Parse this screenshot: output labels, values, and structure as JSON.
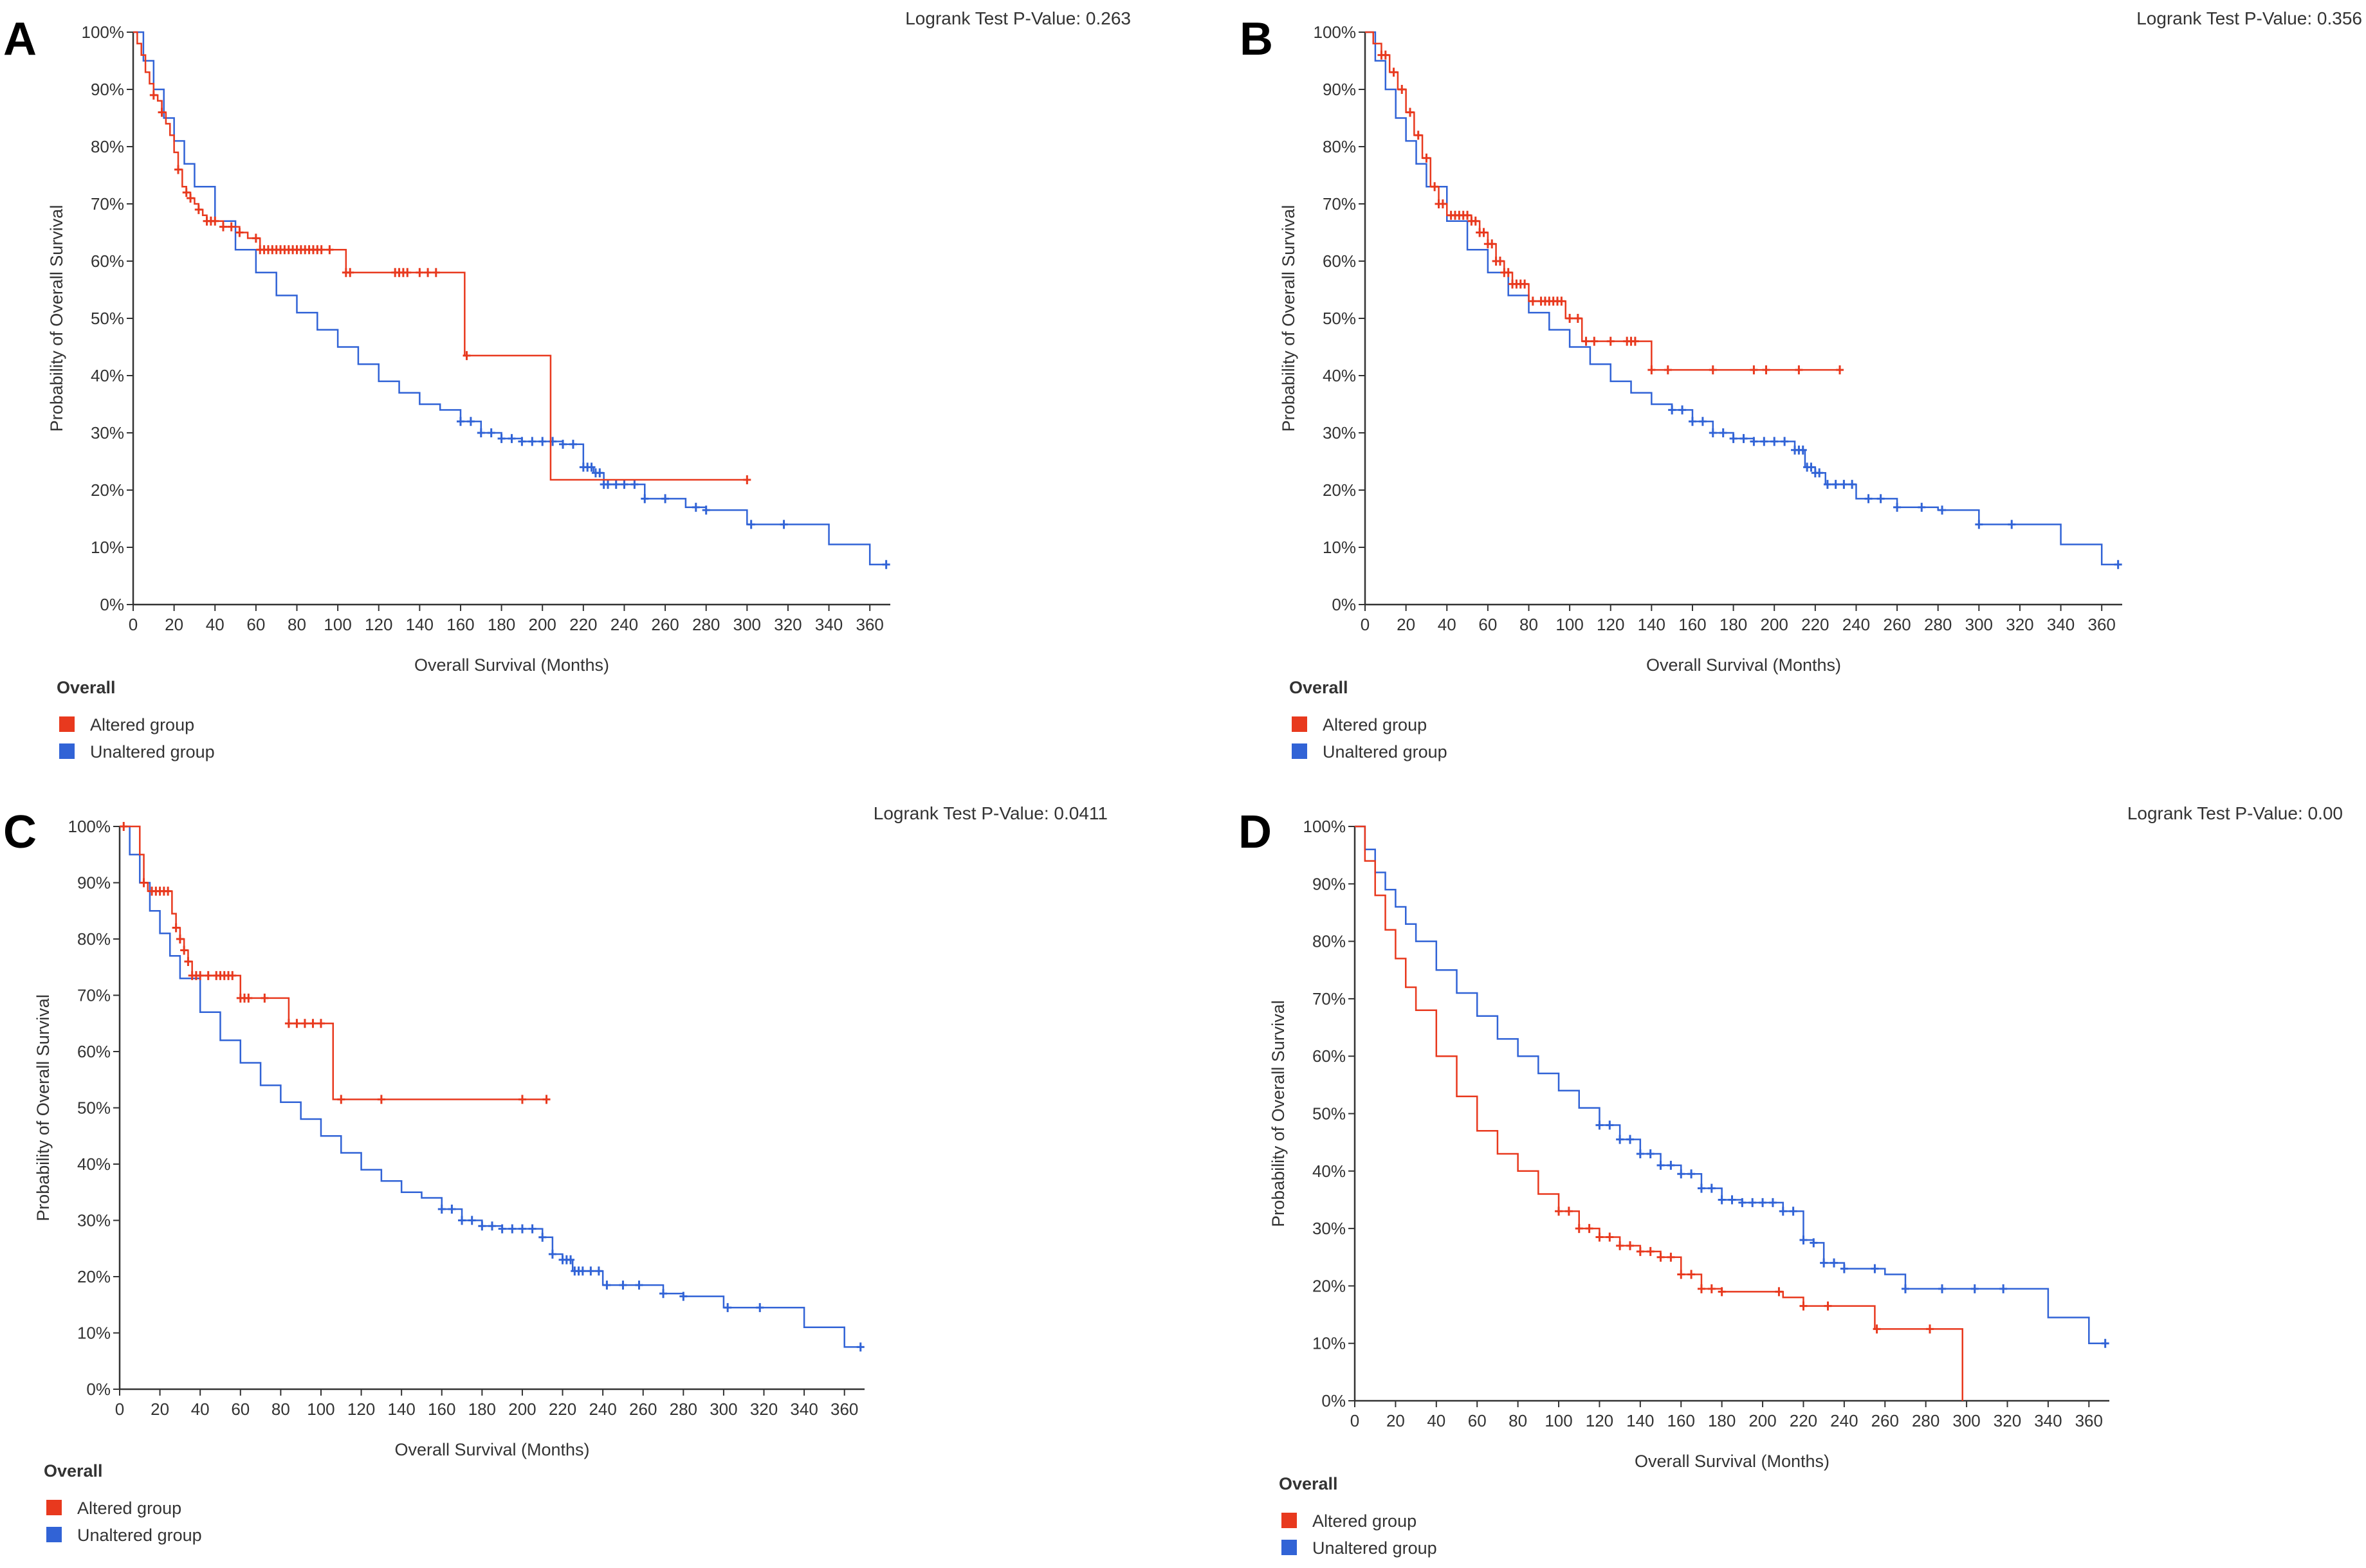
{
  "colors": {
    "altered": "#e8391e",
    "unaltered": "#3163d6",
    "axis": "#333333",
    "text": "#333333"
  },
  "chart_data": [
    {
      "panel_label": "A",
      "type": "line",
      "pvalue_text": "Logrank Test P-Value: 0.263",
      "xlabel": "Overall Survival (Months)",
      "ylabel": "Probability of Overall Survival",
      "xlim": [
        0,
        370
      ],
      "ylim": [
        0,
        100
      ],
      "xticks": [
        0,
        20,
        40,
        60,
        80,
        100,
        120,
        140,
        160,
        180,
        200,
        220,
        240,
        260,
        280,
        300,
        320,
        340,
        360
      ],
      "yticks": [
        0,
        10,
        20,
        30,
        40,
        50,
        60,
        70,
        80,
        90,
        100
      ],
      "legend_title": "Overall",
      "series": [
        {
          "name": "Altered group",
          "color_key": "altered",
          "x": [
            0,
            2,
            4,
            6,
            8,
            10,
            12,
            14,
            16,
            18,
            20,
            22,
            24,
            26,
            28,
            30,
            32,
            34,
            36,
            40,
            44,
            48,
            52,
            56,
            60,
            62,
            70,
            80,
            90,
            100,
            104,
            120,
            140,
            150,
            162,
            200,
            204,
            250,
            300
          ],
          "y": [
            100,
            98,
            96,
            93,
            91,
            89,
            88,
            86,
            84,
            82,
            79,
            76,
            73,
            72,
            71,
            70,
            69,
            68,
            67,
            67,
            66,
            66,
            65,
            64,
            64,
            62,
            62,
            62,
            62,
            62,
            58,
            58,
            58,
            58,
            43.5,
            43.5,
            21.8,
            21.8,
            21.8
          ],
          "censor_x": [
            10,
            14,
            22,
            26,
            28,
            32,
            36,
            38,
            40,
            44,
            48,
            52,
            60,
            62,
            64,
            66,
            68,
            70,
            72,
            74,
            76,
            78,
            80,
            82,
            84,
            86,
            88,
            90,
            92,
            96,
            104,
            106,
            128,
            130,
            132,
            134,
            140,
            144,
            148,
            163,
            300
          ]
        },
        {
          "name": "Unaltered group",
          "color_key": "unaltered",
          "x": [
            0,
            5,
            10,
            15,
            20,
            25,
            30,
            40,
            50,
            60,
            70,
            80,
            90,
            100,
            110,
            120,
            130,
            140,
            150,
            160,
            170,
            180,
            190,
            200,
            210,
            220,
            225,
            230,
            240,
            250,
            270,
            280,
            300,
            320,
            340,
            360,
            368
          ],
          "y": [
            100,
            95,
            90,
            85,
            81,
            77,
            73,
            67,
            62,
            58,
            54,
            51,
            48,
            45,
            42,
            39,
            37,
            35,
            34,
            32,
            30,
            29,
            28.5,
            28.5,
            28,
            24,
            23,
            21,
            21,
            18.5,
            17,
            16.5,
            14,
            14,
            10.5,
            7,
            7
          ],
          "censor_x": [
            160,
            165,
            170,
            175,
            180,
            185,
            190,
            195,
            200,
            205,
            210,
            215,
            220,
            222,
            224,
            226,
            228,
            230,
            232,
            236,
            240,
            245,
            250,
            260,
            275,
            280,
            302,
            318,
            368
          ]
        }
      ]
    },
    {
      "panel_label": "B",
      "type": "line",
      "pvalue_text": "Logrank Test P-Value: 0.356",
      "xlabel": "Overall Survival (Months)",
      "ylabel": "Probability of Overall Survival",
      "xlim": [
        0,
        370
      ],
      "ylim": [
        0,
        100
      ],
      "xticks": [
        0,
        20,
        40,
        60,
        80,
        100,
        120,
        140,
        160,
        180,
        200,
        220,
        240,
        260,
        280,
        300,
        320,
        340,
        360
      ],
      "yticks": [
        0,
        10,
        20,
        30,
        40,
        50,
        60,
        70,
        80,
        90,
        100
      ],
      "legend_title": "Overall",
      "series": [
        {
          "name": "Altered group",
          "color_key": "altered",
          "x": [
            0,
            4,
            8,
            12,
            16,
            20,
            24,
            28,
            32,
            36,
            40,
            44,
            48,
            52,
            56,
            60,
            64,
            68,
            72,
            76,
            80,
            84,
            90,
            98,
            100,
            106,
            110,
            120,
            130,
            140,
            160,
            200,
            232
          ],
          "y": [
            100,
            98,
            96,
            93,
            90,
            86,
            82,
            78,
            73,
            70,
            68,
            68,
            68,
            67,
            65,
            63,
            60,
            58,
            56,
            56,
            53,
            53,
            53,
            50,
            50,
            46,
            46,
            46,
            46,
            41,
            41,
            41,
            41
          ],
          "censor_x": [
            8,
            10,
            14,
            18,
            22,
            26,
            30,
            34,
            36,
            38,
            42,
            44,
            46,
            48,
            50,
            52,
            54,
            56,
            58,
            60,
            62,
            64,
            66,
            68,
            70,
            72,
            74,
            76,
            78,
            82,
            86,
            88,
            90,
            92,
            94,
            96,
            100,
            104,
            108,
            112,
            120,
            128,
            130,
            132,
            140,
            148,
            170,
            190,
            196,
            212,
            232
          ]
        },
        {
          "name": "Unaltered group",
          "color_key": "unaltered",
          "x": [
            0,
            5,
            10,
            15,
            20,
            25,
            30,
            40,
            50,
            60,
            70,
            80,
            90,
            100,
            110,
            120,
            130,
            140,
            150,
            160,
            170,
            180,
            190,
            200,
            210,
            215,
            220,
            225,
            230,
            240,
            260,
            280,
            300,
            320,
            340,
            360,
            368
          ],
          "y": [
            100,
            95,
            90,
            85,
            81,
            77,
            73,
            67,
            62,
            58,
            54,
            51,
            48,
            45,
            42,
            39,
            37,
            35,
            34,
            32,
            30,
            29,
            28.5,
            28.5,
            27,
            24,
            23,
            21,
            21,
            18.5,
            17,
            16.5,
            14,
            14,
            10.5,
            7,
            7
          ],
          "censor_x": [
            150,
            155,
            160,
            165,
            170,
            175,
            180,
            185,
            190,
            195,
            200,
            205,
            210,
            212,
            214,
            216,
            218,
            220,
            222,
            226,
            230,
            234,
            238,
            246,
            252,
            260,
            272,
            282,
            300,
            316,
            368
          ]
        }
      ]
    },
    {
      "panel_label": "C",
      "type": "line",
      "pvalue_text": "Logrank Test P-Value: 0.0411",
      "xlabel": "Overall Survival (Months)",
      "ylabel": "Probability of Overall Survival",
      "xlim": [
        0,
        370
      ],
      "ylim": [
        0,
        100
      ],
      "xticks": [
        0,
        20,
        40,
        60,
        80,
        100,
        120,
        140,
        160,
        180,
        200,
        220,
        240,
        260,
        280,
        300,
        320,
        340,
        360
      ],
      "yticks": [
        0,
        10,
        20,
        30,
        40,
        50,
        60,
        70,
        80,
        90,
        100
      ],
      "legend_title": "Overall",
      "series": [
        {
          "name": "Altered group",
          "color_key": "altered",
          "x": [
            0,
            8,
            10,
            12,
            14,
            16,
            22,
            26,
            28,
            30,
            32,
            34,
            36,
            40,
            50,
            56,
            60,
            70,
            78,
            84,
            90,
            104,
            106,
            110,
            212
          ],
          "y": [
            100,
            100,
            95,
            90,
            88.5,
            88.5,
            88.5,
            84.5,
            82,
            80,
            78,
            76,
            73.5,
            73.5,
            73.5,
            73.5,
            69.5,
            69.5,
            69.5,
            65,
            65,
            65,
            51.5,
            51.5,
            51.5
          ],
          "censor_x": [
            2,
            12,
            16,
            18,
            20,
            22,
            24,
            28,
            30,
            32,
            34,
            36,
            38,
            40,
            44,
            48,
            50,
            52,
            54,
            56,
            60,
            62,
            64,
            72,
            84,
            88,
            92,
            96,
            100,
            110,
            130,
            200,
            212
          ]
        },
        {
          "name": "Unaltered group",
          "color_key": "unaltered",
          "x": [
            0,
            5,
            10,
            15,
            20,
            25,
            30,
            40,
            50,
            60,
            70,
            80,
            90,
            100,
            110,
            120,
            130,
            140,
            150,
            160,
            170,
            180,
            190,
            200,
            210,
            215,
            220,
            225,
            230,
            240,
            250,
            270,
            280,
            300,
            320,
            335,
            340,
            360,
            368
          ],
          "y": [
            100,
            95,
            90,
            85,
            81,
            77,
            73,
            67,
            62,
            58,
            54,
            51,
            48,
            45,
            42,
            39,
            37,
            35,
            34,
            32,
            30,
            29,
            28.5,
            28.5,
            27,
            24,
            23,
            21,
            21,
            18.5,
            18.5,
            17,
            16.5,
            14.5,
            14.5,
            14.5,
            11,
            7.5,
            7.5
          ],
          "censor_x": [
            160,
            165,
            170,
            175,
            180,
            185,
            190,
            195,
            200,
            205,
            210,
            215,
            220,
            222,
            224,
            226,
            228,
            230,
            234,
            238,
            242,
            250,
            258,
            270,
            280,
            302,
            318,
            368
          ]
        }
      ]
    },
    {
      "panel_label": "D",
      "type": "line",
      "pvalue_text": "Logrank Test P-Value: 0.00",
      "xlabel": "Overall Survival (Months)",
      "ylabel": "Probability of Overall Survival",
      "xlim": [
        0,
        370
      ],
      "ylim": [
        0,
        100
      ],
      "xticks": [
        0,
        20,
        40,
        60,
        80,
        100,
        120,
        140,
        160,
        180,
        200,
        220,
        240,
        260,
        280,
        300,
        320,
        340,
        360
      ],
      "yticks": [
        0,
        10,
        20,
        30,
        40,
        50,
        60,
        70,
        80,
        90,
        100
      ],
      "legend_title": "Overall",
      "series": [
        {
          "name": "Altered group",
          "color_key": "altered",
          "x": [
            0,
            5,
            10,
            15,
            20,
            25,
            30,
            40,
            50,
            60,
            70,
            80,
            90,
            100,
            110,
            120,
            130,
            140,
            150,
            160,
            170,
            180,
            210,
            220,
            240,
            255,
            280,
            298,
            298
          ],
          "y": [
            100,
            94,
            88,
            82,
            77,
            72,
            68,
            60,
            53,
            47,
            43,
            40,
            36,
            33,
            30,
            28.5,
            27,
            26,
            25,
            22,
            19.5,
            19,
            18,
            16.5,
            16.5,
            12.5,
            12.5,
            12.5,
            0
          ],
          "censor_x": [
            100,
            105,
            110,
            115,
            120,
            125,
            130,
            135,
            140,
            145,
            150,
            155,
            160,
            165,
            170,
            175,
            180,
            208,
            220,
            232,
            256,
            282
          ]
        },
        {
          "name": "Unaltered group",
          "color_key": "unaltered",
          "x": [
            0,
            5,
            10,
            15,
            20,
            25,
            30,
            40,
            50,
            60,
            70,
            80,
            90,
            100,
            110,
            120,
            130,
            140,
            150,
            160,
            170,
            180,
            190,
            200,
            210,
            220,
            225,
            230,
            240,
            260,
            270,
            280,
            300,
            320,
            340,
            360,
            368
          ],
          "y": [
            100,
            96,
            92,
            89,
            86,
            83,
            80,
            75,
            71,
            67,
            63,
            60,
            57,
            54,
            51,
            48,
            45.5,
            43,
            41,
            39.5,
            37,
            35,
            34.5,
            34.5,
            33,
            28,
            27.5,
            24,
            23,
            22,
            19.5,
            19.5,
            19.5,
            19.5,
            14.5,
            10,
            10
          ],
          "censor_x": [
            120,
            125,
            130,
            135,
            140,
            145,
            150,
            155,
            160,
            165,
            170,
            175,
            180,
            185,
            190,
            195,
            200,
            205,
            210,
            215,
            220,
            225,
            230,
            235,
            240,
            255,
            270,
            288,
            304,
            318,
            368
          ]
        }
      ]
    }
  ]
}
